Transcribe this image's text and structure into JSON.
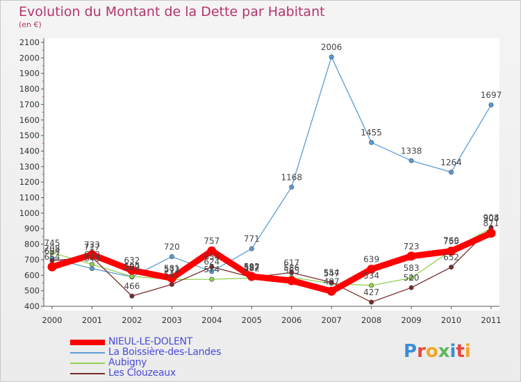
{
  "header": {
    "title": "Evolution du Montant de la Dette par Habitant",
    "subtitle": "(en €)"
  },
  "logo": {
    "text": "Proxiti",
    "colors": [
      "#3a8fd6",
      "#e8483b",
      "#f2a623",
      "#5cb85c",
      "#3a8fd6",
      "#e8483b",
      "#f2a623"
    ]
  },
  "chart_data": {
    "type": "line",
    "title": "Evolution du Montant de la Dette par Habitant",
    "ylabel": "(en €)",
    "xlabel": "",
    "x": [
      "2000",
      "2001",
      "2002",
      "2003",
      "2004",
      "2005",
      "2006",
      "2007",
      "2008",
      "2009",
      "2010",
      "2011"
    ],
    "ylim": [
      400,
      2100
    ],
    "yticks": [
      400,
      500,
      600,
      700,
      800,
      900,
      1000,
      1100,
      1200,
      1300,
      1400,
      1500,
      1600,
      1700,
      1800,
      1900,
      2000,
      2100
    ],
    "grid": false,
    "legend": "bottom-left",
    "series": [
      {
        "name": "NIEUL-LE-DOLENT",
        "color": "#ff0000",
        "values": [
          654,
          733,
          632,
          581,
          757,
          592,
          565,
          497,
          639,
          723,
          755,
          871
        ]
      },
      {
        "name": "La Boissière-des-Landes",
        "color": "#5b9bd5",
        "values": [
          708,
          643,
          589,
          720,
          624,
          771,
          1168,
          2006,
          1455,
          1338,
          1264,
          1697
        ]
      },
      {
        "name": "Aubigny",
        "color": "#92d050",
        "values": [
          745,
          670,
          592,
          573,
          574,
          582,
          586,
          547,
          534,
          583,
          760,
          904
        ]
      },
      {
        "name": "Les Clouzeaux",
        "color": "#7a2a2a",
        "values": [
          694,
          717,
          466,
          541,
          654,
          587,
          617,
          554,
          427,
          520,
          652,
          908
        ]
      }
    ]
  }
}
